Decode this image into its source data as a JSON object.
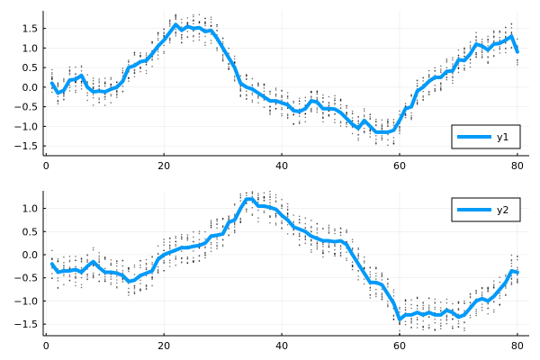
{
  "chart_data": [
    {
      "type": "line",
      "title": "",
      "xlabel": "",
      "ylabel": "",
      "xlim": [
        -0.5,
        82
      ],
      "ylim": [
        -1.75,
        1.95
      ],
      "xticks": [
        0,
        20,
        40,
        60,
        80
      ],
      "xtick_labels": [
        "0",
        "20",
        "40",
        "60",
        "80"
      ],
      "yticks": [
        -1.5,
        -1.0,
        -0.5,
        0.0,
        0.5,
        1.0,
        1.5
      ],
      "ytick_labels": [
        "−1.5",
        "−1.0",
        "−0.5",
        "0.0",
        "0.5",
        "1.0",
        "1.5"
      ],
      "grid": true,
      "legend_position": "bottom-right",
      "series": [
        {
          "name": "y1",
          "color": "#009af9",
          "x": [
            1,
            2,
            3,
            4,
            5,
            6,
            7,
            8,
            9,
            10,
            11,
            12,
            13,
            14,
            15,
            16,
            17,
            18,
            19,
            20,
            21,
            22,
            23,
            24,
            25,
            26,
            27,
            28,
            29,
            30,
            31,
            32,
            33,
            34,
            35,
            36,
            37,
            38,
            39,
            40,
            41,
            42,
            43,
            44,
            45,
            46,
            47,
            48,
            49,
            50,
            51,
            52,
            53,
            54,
            55,
            56,
            57,
            58,
            59,
            60,
            61,
            62,
            63,
            64,
            65,
            66,
            67,
            68,
            69,
            70,
            71,
            72,
            73,
            74,
            75,
            76,
            77,
            78,
            79,
            80
          ],
          "y": [
            0.1,
            -0.15,
            -0.08,
            0.18,
            0.2,
            0.3,
            0.0,
            -0.12,
            -0.1,
            -0.12,
            -0.05,
            0.0,
            0.15,
            0.5,
            0.55,
            0.65,
            0.68,
            0.85,
            1.05,
            1.2,
            1.4,
            1.6,
            1.45,
            1.55,
            1.5,
            1.52,
            1.42,
            1.45,
            1.25,
            1.0,
            0.75,
            0.5,
            0.1,
            0.0,
            -0.05,
            -0.15,
            -0.25,
            -0.35,
            -0.35,
            -0.4,
            -0.45,
            -0.6,
            -0.62,
            -0.55,
            -0.35,
            -0.38,
            -0.55,
            -0.55,
            -0.56,
            -0.65,
            -0.8,
            -0.95,
            -1.05,
            -0.85,
            -1.0,
            -1.15,
            -1.15,
            -1.15,
            -1.1,
            -0.85,
            -0.55,
            -0.5,
            -0.1,
            0.0,
            0.15,
            0.25,
            0.25,
            0.4,
            0.42,
            0.7,
            0.68,
            0.85,
            1.1,
            1.05,
            0.95,
            1.1,
            1.12,
            1.2,
            1.3,
            0.9
          ]
        }
      ]
    },
    {
      "type": "line",
      "title": "",
      "xlabel": "",
      "ylabel": "",
      "xlim": [
        -0.5,
        82
      ],
      "ylim": [
        -1.75,
        1.38
      ],
      "xticks": [
        0,
        20,
        40,
        60,
        80
      ],
      "xtick_labels": [
        "0",
        "20",
        "40",
        "60",
        "80"
      ],
      "yticks": [
        -1.5,
        -1.0,
        -0.5,
        0.0,
        0.5,
        1.0
      ],
      "ytick_labels": [
        "−1.5",
        "−1.0",
        "−0.5",
        "0.0",
        "0.5",
        "1.0"
      ],
      "grid": true,
      "legend_position": "top-right",
      "series": [
        {
          "name": "y2",
          "color": "#009af9",
          "x": [
            1,
            2,
            3,
            4,
            5,
            6,
            7,
            8,
            9,
            10,
            11,
            12,
            13,
            14,
            15,
            16,
            17,
            18,
            19,
            20,
            21,
            22,
            23,
            24,
            25,
            26,
            27,
            28,
            29,
            30,
            31,
            32,
            33,
            34,
            35,
            36,
            37,
            38,
            39,
            40,
            41,
            42,
            43,
            44,
            45,
            46,
            47,
            48,
            49,
            50,
            51,
            52,
            53,
            54,
            55,
            56,
            57,
            58,
            59,
            60,
            61,
            62,
            63,
            64,
            65,
            66,
            67,
            68,
            69,
            70,
            71,
            72,
            73,
            74,
            75,
            76,
            77,
            78,
            79,
            80
          ],
          "y": [
            -0.2,
            -0.38,
            -0.35,
            -0.35,
            -0.32,
            -0.38,
            -0.25,
            -0.15,
            -0.28,
            -0.38,
            -0.38,
            -0.4,
            -0.45,
            -0.58,
            -0.55,
            -0.45,
            -0.4,
            -0.35,
            -0.1,
            0.0,
            0.05,
            0.1,
            0.15,
            0.15,
            0.18,
            0.2,
            0.25,
            0.4,
            0.42,
            0.45,
            0.7,
            0.75,
            1.0,
            1.2,
            1.2,
            1.05,
            1.05,
            1.02,
            0.98,
            0.85,
            0.75,
            0.6,
            0.55,
            0.5,
            0.4,
            0.35,
            0.3,
            0.3,
            0.28,
            0.3,
            0.22,
            0.0,
            -0.2,
            -0.4,
            -0.6,
            -0.6,
            -0.65,
            -0.85,
            -1.05,
            -1.4,
            -1.3,
            -1.3,
            -1.25,
            -1.3,
            -1.25,
            -1.3,
            -1.3,
            -1.2,
            -1.25,
            -1.35,
            -1.3,
            -1.15,
            -1.0,
            -0.95,
            -1.0,
            -0.9,
            -0.75,
            -0.6,
            -0.35,
            -0.38
          ]
        }
      ]
    }
  ]
}
